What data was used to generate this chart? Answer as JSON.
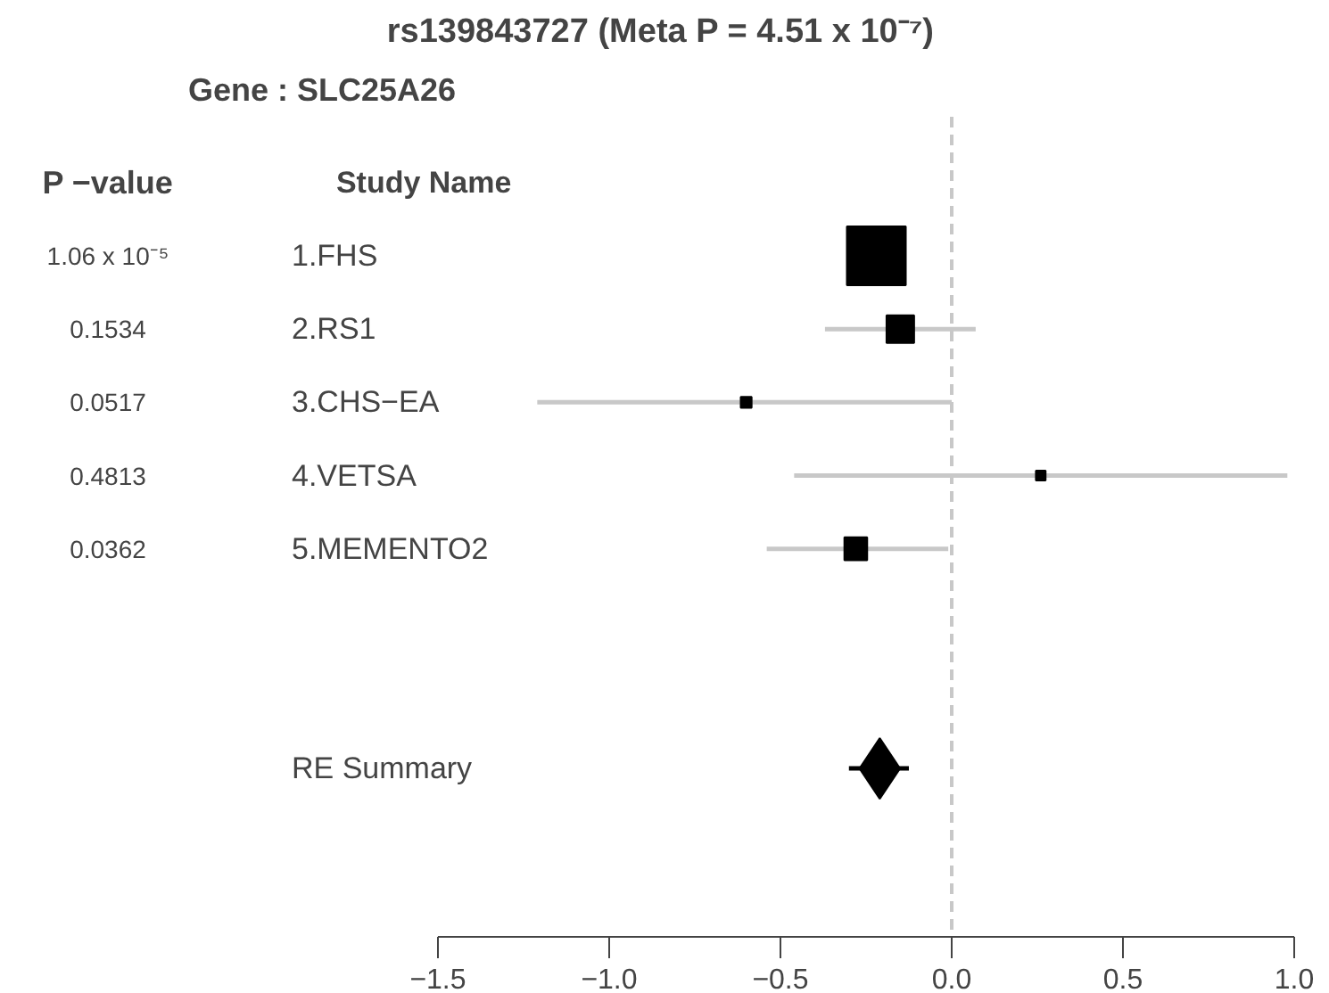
{
  "chart_data": {
    "type": "bubble",
    "title": "rs139843727  (Meta P = 4.51 x 10⁻⁷)",
    "subtitle": "Gene : SLC25A26",
    "orientation": "horizontal",
    "marker": "square",
    "categories": [
      "1.FHS",
      "2.RS1",
      "3.CHS−EA",
      "4.VETSA",
      "5.MEMENTO2",
      null,
      null,
      "RE Summary"
    ],
    "xlim": [
      -1.5,
      1.0
    ],
    "xticks": [
      {
        "value": -1.5,
        "label": "−1.5"
      },
      {
        "value": -1.0,
        "label": "−1.0"
      },
      {
        "value": -0.5,
        "label": "−0.5"
      },
      {
        "value": 0.0,
        "label": "0.0"
      },
      {
        "value": 0.5,
        "label": "0.5"
      },
      {
        "value": 1.0,
        "label": "1.0"
      }
    ],
    "series": [
      {
        "color": "#000000",
        "values": [
          -0.22,
          -0.15,
          -0.6,
          0.26,
          -0.28,
          null,
          null,
          null
        ],
        "errors": [
          null,
          [
            -0.37,
            0.07
          ],
          [
            -1.21,
            0.0
          ],
          [
            -0.46,
            0.98
          ],
          [
            -0.54,
            -0.01
          ],
          null,
          null,
          null
        ],
        "sizes": [
          1,
          0.22,
          0.034,
          0.027,
          0.15,
          null,
          null,
          null
        ]
      },
      {
        "type": "scatter",
        "marker": "diamond",
        "color": "#000000",
        "values": [
          null,
          null,
          null,
          null,
          null,
          null,
          null,
          -0.21
        ],
        "errors": [
          null,
          null,
          null,
          null,
          null,
          null,
          null,
          [
            -0.3,
            -0.125
          ]
        ]
      }
    ],
    "ref_lines": [
      {
        "axis": "x",
        "value": 0,
        "color": "#c8c8c8",
        "line_style": "dashed"
      }
    ],
    "annotations": [
      "P −value",
      "Study Name",
      "1.06 x 10⁻⁵",
      "0.1534",
      "0.0517",
      "0.4813",
      "0.0362"
    ]
  }
}
